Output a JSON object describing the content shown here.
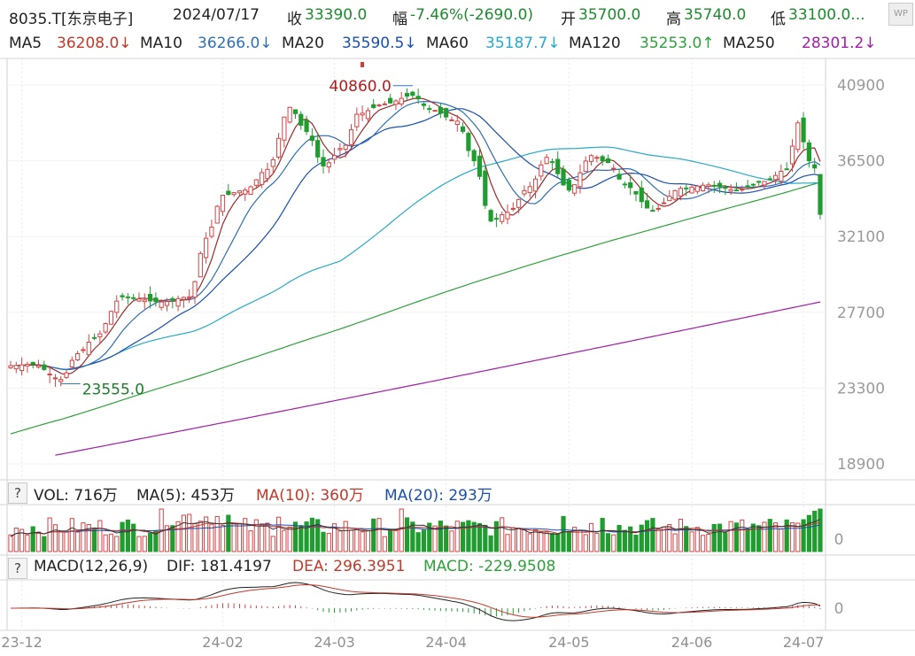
{
  "header": {
    "code": "8035.T[东京电子]",
    "date": "2024/07/17",
    "close_label": "收",
    "close_value": "33390.0",
    "change_label": "幅",
    "change_value": "-7.46%(-2690.0)",
    "open_label": "开",
    "open_value": "35700.0",
    "high_label": "高",
    "high_value": "35740.0",
    "low_label": "低",
    "low_value": "33100.0..."
  },
  "badge": "WP",
  "ma_legend": [
    {
      "label": "MA5",
      "value": "36208.0↓",
      "color": "#c0392b"
    },
    {
      "label": "MA10",
      "value": "36266.0↓",
      "color": "#2f6fb5"
    },
    {
      "label": "MA20",
      "value": "35590.5↓",
      "color": "#1a4fb0"
    },
    {
      "label": "MA60",
      "value": "35187.7↓",
      "color": "#27a9c9"
    },
    {
      "label": "MA120",
      "value": "35253.0↑",
      "color": "#2fa13a"
    },
    {
      "label": "MA250",
      "value": "28301.2↓",
      "color": "#a11fa8"
    }
  ],
  "volume": {
    "help": "?",
    "label": "VOL: 716万",
    "ma5": "MA(5): 453万",
    "ma10": "MA(10): 360万",
    "ma20": "MA(20): 293万"
  },
  "macd": {
    "help": "?",
    "label": "MACD(12,26,9)",
    "dif": "DIF: 181.4197",
    "dea": "DEA: 296.3951",
    "macd": "MACD: -229.9508"
  },
  "chart_data": {
    "type": "candlestick",
    "y_ticks": [
      "40900",
      "36500",
      "32100",
      "27700",
      "23300",
      "18900"
    ],
    "ylim": [
      18900,
      40900
    ],
    "volume_tick": "0",
    "macd_tick": "0",
    "x_ticks": [
      {
        "label": "23-12",
        "index": 2
      },
      {
        "label": "24-02",
        "index": 38
      },
      {
        "label": "24-03",
        "index": 58
      },
      {
        "label": "24-04",
        "index": 78
      },
      {
        "label": "24-05",
        "index": 100
      },
      {
        "label": "24-06",
        "index": 122
      },
      {
        "label": "24-07",
        "index": 142
      }
    ],
    "annotations": [
      {
        "text": "40860.0",
        "value": 40860,
        "index": 72,
        "color": "#b01c1c"
      },
      {
        "text": "23555.0",
        "value": 23555,
        "index": 9,
        "color": "#1e7d2c"
      }
    ],
    "close_anchors": [
      [
        0,
        24600
      ],
      [
        4,
        24700
      ],
      [
        9,
        23800
      ],
      [
        12,
        25300
      ],
      [
        15,
        26200
      ],
      [
        20,
        28600
      ],
      [
        27,
        28300
      ],
      [
        32,
        28600
      ],
      [
        35,
        32000
      ],
      [
        38,
        34500
      ],
      [
        42,
        34800
      ],
      [
        46,
        36000
      ],
      [
        50,
        39600
      ],
      [
        53,
        38200
      ],
      [
        56,
        36200
      ],
      [
        60,
        37400
      ],
      [
        62,
        39200
      ],
      [
        67,
        39800
      ],
      [
        72,
        40300
      ],
      [
        75,
        39500
      ],
      [
        80,
        38800
      ],
      [
        83,
        36500
      ],
      [
        86,
        33000
      ],
      [
        89,
        33500
      ],
      [
        93,
        35000
      ],
      [
        96,
        36700
      ],
      [
        100,
        34800
      ],
      [
        104,
        36800
      ],
      [
        107,
        36400
      ],
      [
        110,
        35100
      ],
      [
        115,
        33600
      ],
      [
        120,
        34900
      ],
      [
        125,
        35100
      ],
      [
        130,
        34800
      ],
      [
        135,
        35300
      ],
      [
        139,
        36000
      ],
      [
        141,
        38700
      ],
      [
        143,
        36500
      ],
      [
        144,
        36080
      ],
      [
        145,
        33390
      ]
    ],
    "ma250_range": [
      18900,
      28301.2
    ],
    "last_candle": {
      "open": 35700,
      "high": 35740,
      "low": 33100,
      "close": 33390
    }
  }
}
